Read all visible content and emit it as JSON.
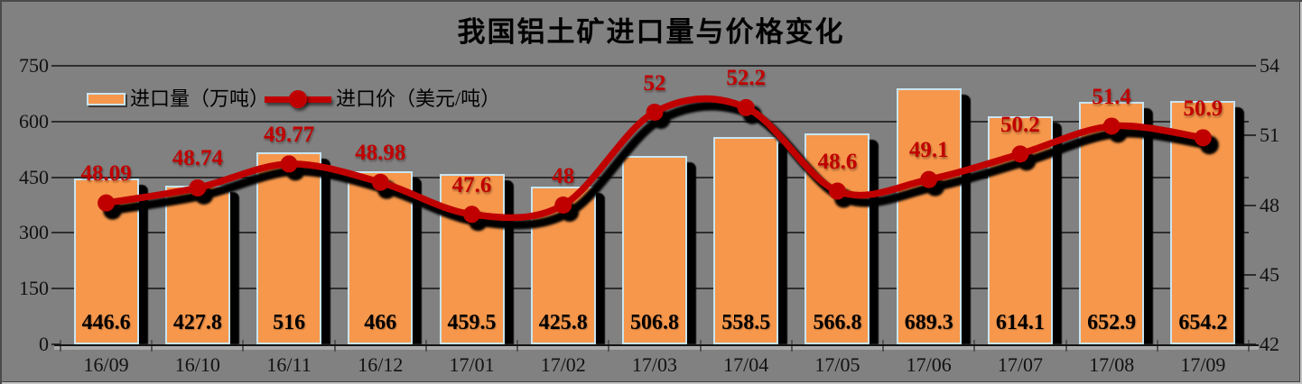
{
  "title": "我国铝土矿进口量与价格变化",
  "legend": {
    "bar_label": "进口量（万吨）",
    "line_label": "进口价（美元/吨）"
  },
  "colors": {
    "background": "#818181",
    "bar_fill": "#F6974B",
    "bar_border": "#C9E4F1",
    "line": "#C00000",
    "price_label": "#C00000",
    "bar_value_label": "#000000",
    "shadow": "#000000"
  },
  "chart_data": {
    "type": "bar",
    "subtype": "combo-bar-line",
    "title": "我国铝土矿进口量与价格变化",
    "categories": [
      "16/09",
      "16/10",
      "16/11",
      "16/12",
      "17/01",
      "17/02",
      "17/03",
      "17/04",
      "17/05",
      "17/06",
      "17/07",
      "17/08",
      "17/09"
    ],
    "series": [
      {
        "name": "进口量（万吨）",
        "type": "bar",
        "axis": "left",
        "values": [
          446.6,
          427.8,
          516,
          466,
          459.5,
          425.8,
          506.8,
          558.5,
          566.8,
          689.3,
          614.1,
          652.9,
          654.2
        ]
      },
      {
        "name": "进口价（美元/吨）",
        "type": "line",
        "axis": "right",
        "smooth": true,
        "values": [
          48.09,
          48.74,
          49.77,
          48.98,
          47.6,
          48,
          52,
          52.2,
          48.6,
          49.1,
          50.2,
          51.4,
          50.9
        ]
      }
    ],
    "axes": {
      "left": {
        "min": 0,
        "max": 750,
        "ticks": [
          0,
          150,
          300,
          450,
          600,
          750
        ]
      },
      "right": {
        "min": 42,
        "max": 54,
        "ticks": [
          42,
          45,
          48,
          51,
          54
        ]
      }
    },
    "grid": "horizontal",
    "legend_position": "top-left-inside",
    "data_labels": {
      "bars": "inside-bottom",
      "line": "above"
    }
  }
}
